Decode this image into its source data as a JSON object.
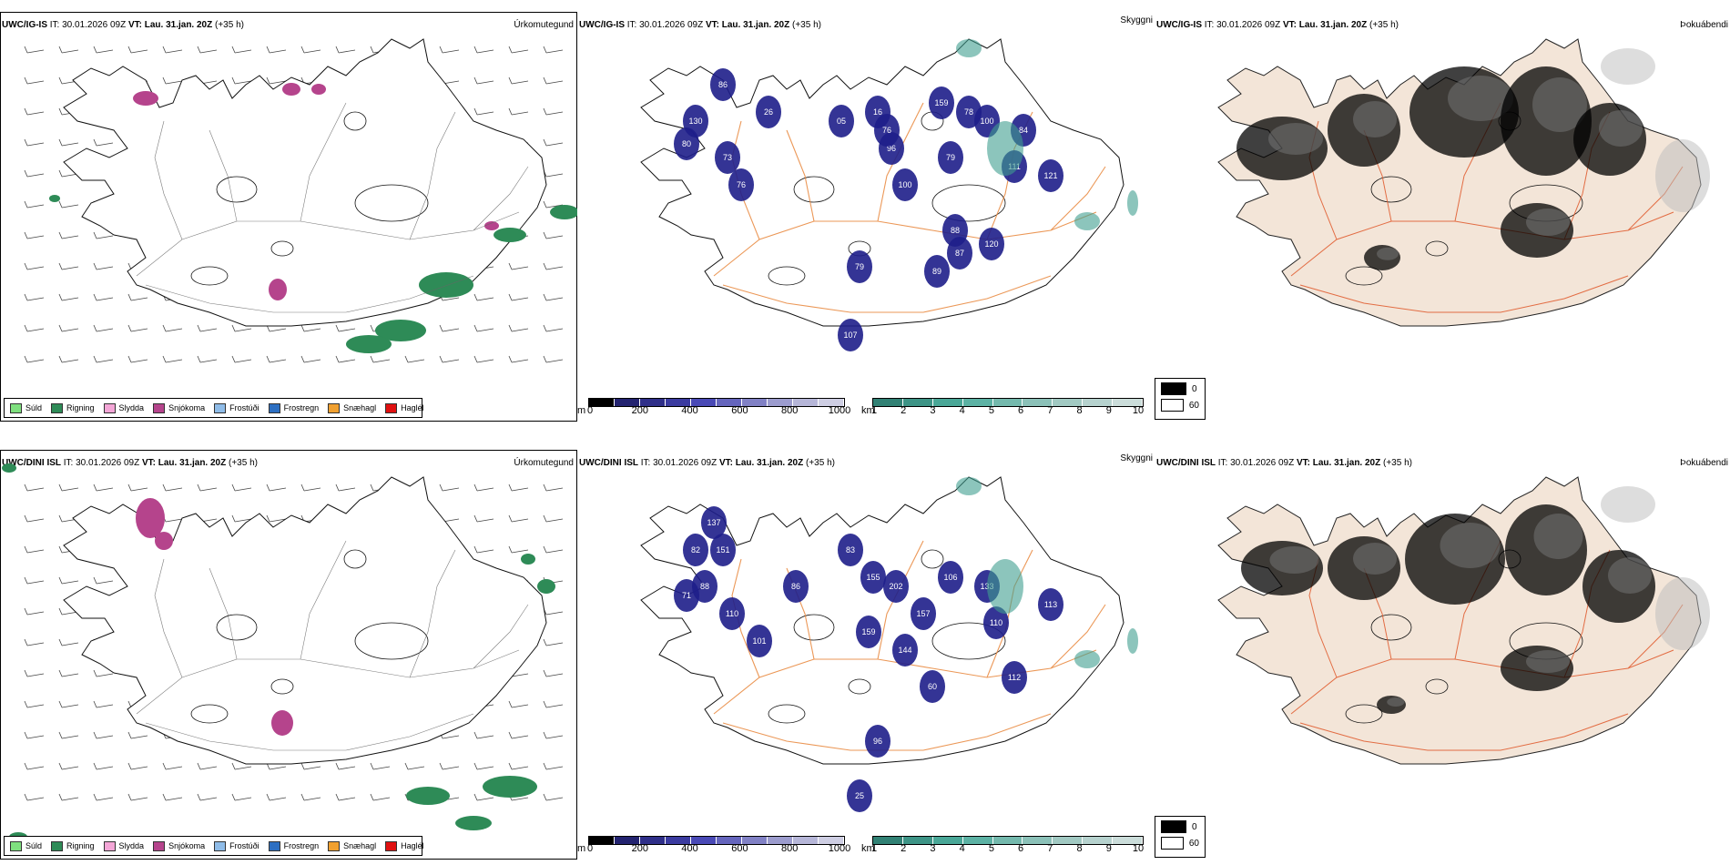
{
  "rows": [
    {
      "model": "UWC/IG-IS",
      "it_label": "IT:",
      "it_value": "30.01.2026 09Z",
      "vt_label": "VT:",
      "vt_value": "Lau. 31.jan. 20Z",
      "lead": "(+35 h)",
      "titles": {
        "precip": "Úrkomutegund",
        "ceiling": "Skyggni",
        "cloud": "Þokuábendi"
      }
    },
    {
      "model": "UWC/DINI ISL",
      "it_label": "IT:",
      "it_value": "30.01.2026 09Z",
      "vt_label": "VT:",
      "vt_value": "Lau. 31.jan. 20Z",
      "lead": "(+35 h)",
      "titles": {
        "precip": "Úrkomutegund",
        "ceiling": "Skyggni",
        "cloud": "Þokuábendi"
      }
    }
  ],
  "precip_legend": [
    {
      "label": "Súld",
      "color": "#7fe07f"
    },
    {
      "label": "Rigning",
      "color": "#2e8b57"
    },
    {
      "label": "Slydda",
      "color": "#f4a6d7"
    },
    {
      "label": "Snjókoma",
      "color": "#b5448c"
    },
    {
      "label": "Frostúði",
      "color": "#8fbce8"
    },
    {
      "label": "Frostregn",
      "color": "#2d6fc2"
    },
    {
      "label": "Snæhagl",
      "color": "#f0a030"
    },
    {
      "label": "Haglél",
      "color": "#e01010"
    }
  ],
  "ceiling_bar": {
    "unit": "m",
    "ticks": [
      "0",
      "200",
      "400",
      "600",
      "800",
      "1000"
    ]
  },
  "visibility_bar": {
    "unit": "km",
    "ticks": [
      "1",
      "2",
      "3",
      "4",
      "5",
      "6",
      "7",
      "8",
      "9",
      "10"
    ]
  },
  "cloud_legend": {
    "dark": "0",
    "light": "60"
  },
  "ceiling_labels_top": [
    "130",
    "86",
    "80",
    "73",
    "76",
    "26",
    "05",
    "16",
    "96",
    "100",
    "159",
    "78",
    "79",
    "100",
    "84",
    "111",
    "121",
    "120",
    "88",
    "87",
    "89",
    "79",
    "107",
    "76"
  ],
  "ceiling_labels_bottom": [
    "137",
    "82",
    "151",
    "88",
    "71",
    "110",
    "101",
    "86",
    "83",
    "155",
    "202",
    "157",
    "144",
    "159",
    "106",
    "133",
    "110",
    "113",
    "112",
    "60",
    "96",
    "25"
  ],
  "colors": {
    "snow": "#b5448c",
    "rain": "#2e8b57",
    "ceilingDark": "#1e1e8a",
    "visTeal": "#3f9f8f",
    "roads": "#e8863a",
    "land": "#f3e5d8"
  }
}
